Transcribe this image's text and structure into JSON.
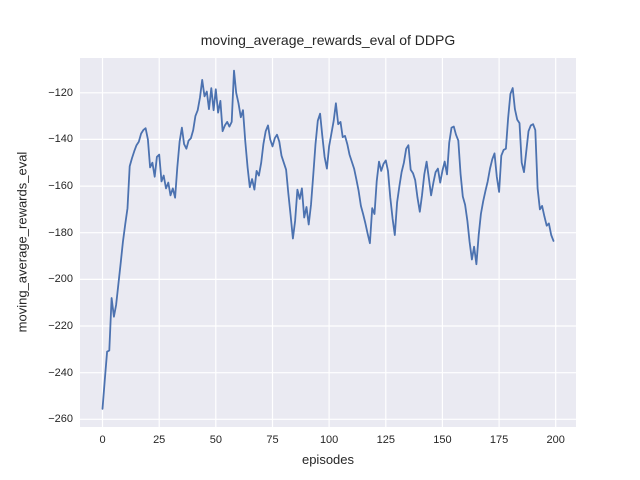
{
  "style": {
    "figure_background": "#ffffff",
    "plot_background": "#eaeaf2",
    "grid_color": "#ffffff",
    "text_color": "#262626",
    "line_color": "#4c72b0"
  },
  "chart_data": {
    "type": "line",
    "title": "moving_average_rewards_eval of DDPG",
    "xlabel": "episodes",
    "ylabel": "moving_average_rewards_eval",
    "legend": null,
    "grid": true,
    "x_ticks": [
      0,
      25,
      50,
      75,
      100,
      125,
      150,
      175,
      200
    ],
    "y_ticks": [
      -260,
      -240,
      -220,
      -200,
      -180,
      -160,
      -140,
      -120
    ],
    "xlim": [
      -9.95,
      208.95
    ],
    "ylim": [
      -263.3,
      -105.1
    ],
    "series": [
      {
        "name": "moving_average_rewards_eval",
        "x_start": 0,
        "x_step": 1,
        "values": [
          -255.5,
          -243,
          -231,
          -230.5,
          -208,
          -216,
          -211,
          -202,
          -193,
          -184,
          -176.5,
          -169.5,
          -151.5,
          -148,
          -145,
          -142.5,
          -141,
          -137.5,
          -136,
          -135.2,
          -140,
          -152,
          -150,
          -156,
          -147.5,
          -146.5,
          -158,
          -155.5,
          -161,
          -158.5,
          -164,
          -161,
          -165,
          -152,
          -141,
          -135,
          -142,
          -144,
          -140.5,
          -139.5,
          -136,
          -130,
          -127.5,
          -122,
          -114.5,
          -121.5,
          -119.5,
          -127,
          -118,
          -127.5,
          -118.5,
          -128.5,
          -123.5,
          -136.5,
          -134,
          -132.5,
          -134.5,
          -132.5,
          -110.5,
          -120,
          -124.5,
          -130.5,
          -127.5,
          -141,
          -152,
          -160.5,
          -157,
          -161.5,
          -153.5,
          -155.5,
          -150,
          -142,
          -136.5,
          -134,
          -140,
          -143,
          -139.5,
          -138,
          -141,
          -147,
          -150,
          -153,
          -163,
          -172.5,
          -182.5,
          -175,
          -161.5,
          -165.5,
          -161,
          -173.5,
          -169,
          -176.5,
          -168,
          -155,
          -142,
          -132,
          -129,
          -138.5,
          -147.5,
          -152.5,
          -143,
          -137.5,
          -132,
          -124.5,
          -133.5,
          -132.5,
          -139,
          -138.5,
          -142,
          -146.5,
          -149.5,
          -152.5,
          -157,
          -162,
          -168.5,
          -172,
          -176,
          -180.5,
          -184.5,
          -169.5,
          -172,
          -158,
          -149.5,
          -153.5,
          -150.5,
          -149,
          -153.5,
          -165,
          -174,
          -181,
          -167,
          -160,
          -154,
          -150,
          -144,
          -142.5,
          -153,
          -154.5,
          -157.5,
          -165,
          -171,
          -164,
          -155,
          -149.5,
          -156.5,
          -164,
          -158.5,
          -154,
          -152.5,
          -158.5,
          -153.5,
          -149.5,
          -155,
          -141.5,
          -135,
          -134.5,
          -138,
          -140.5,
          -155,
          -164.5,
          -168,
          -175,
          -184,
          -191.5,
          -186,
          -193.5,
          -181,
          -172,
          -166.5,
          -162,
          -158,
          -152.5,
          -148.5,
          -146,
          -156,
          -162.5,
          -147,
          -144.5,
          -144,
          -131,
          -120.5,
          -118,
          -127,
          -131.5,
          -133,
          -150,
          -154,
          -145,
          -136.5,
          -134,
          -133.5,
          -136,
          -161,
          -170,
          -168.5,
          -173,
          -177,
          -176,
          -181,
          -183.5
        ]
      }
    ]
  }
}
